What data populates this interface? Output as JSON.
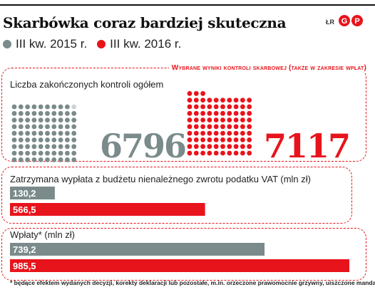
{
  "header": {
    "title": "Skarbówka coraz bardziej skuteczna",
    "credit": "ŁR",
    "logo_text": "GP"
  },
  "legend": [
    {
      "label": "III kw. 2015 r.",
      "color": "#7b8a8a"
    },
    {
      "label": "III kw. 2016 r.",
      "color": "#e8141b"
    }
  ],
  "panel_title": "Wybrane wyniki kontroli skarbowej (także w zakresie wpłat)",
  "colors": {
    "grey": "#7b8a8a",
    "red": "#e8141b",
    "light_grey": "#cfd3d3"
  },
  "chart_data": [
    {
      "type": "pictogram",
      "label": "Liczba zakończonych kontroli ogółem",
      "series": [
        {
          "name": "III kw. 2015 r.",
          "value": 6796,
          "display": "6796"
        },
        {
          "name": "III kw. 2016 r.",
          "value": 7117,
          "display": "7117"
        }
      ]
    },
    {
      "type": "bar",
      "orientation": "horizontal",
      "label": "Zatrzymana wypłata z budżetu nienależnego zwrotu podatku VAT (mln zł)",
      "series": [
        {
          "name": "III kw. 2015 r.",
          "value": 130.2,
          "display": "130,2"
        },
        {
          "name": "III kw. 2016 r.",
          "value": 566.5,
          "display": "566,5"
        }
      ]
    },
    {
      "type": "bar",
      "orientation": "horizontal",
      "label": "Wpłaty* (mln zł)",
      "series": [
        {
          "name": "III kw. 2015 r.",
          "value": 739.2,
          "display": "739,2"
        },
        {
          "name": "III kw. 2016 r.",
          "value": 985.5,
          "display": "985,5"
        }
      ]
    }
  ],
  "footnote": "* będące efektem wydanych decyzji, korekty deklaracji lub pozostałe, m.in. orzeczone prawomocnie grzywny, uiszczone mandaty"
}
